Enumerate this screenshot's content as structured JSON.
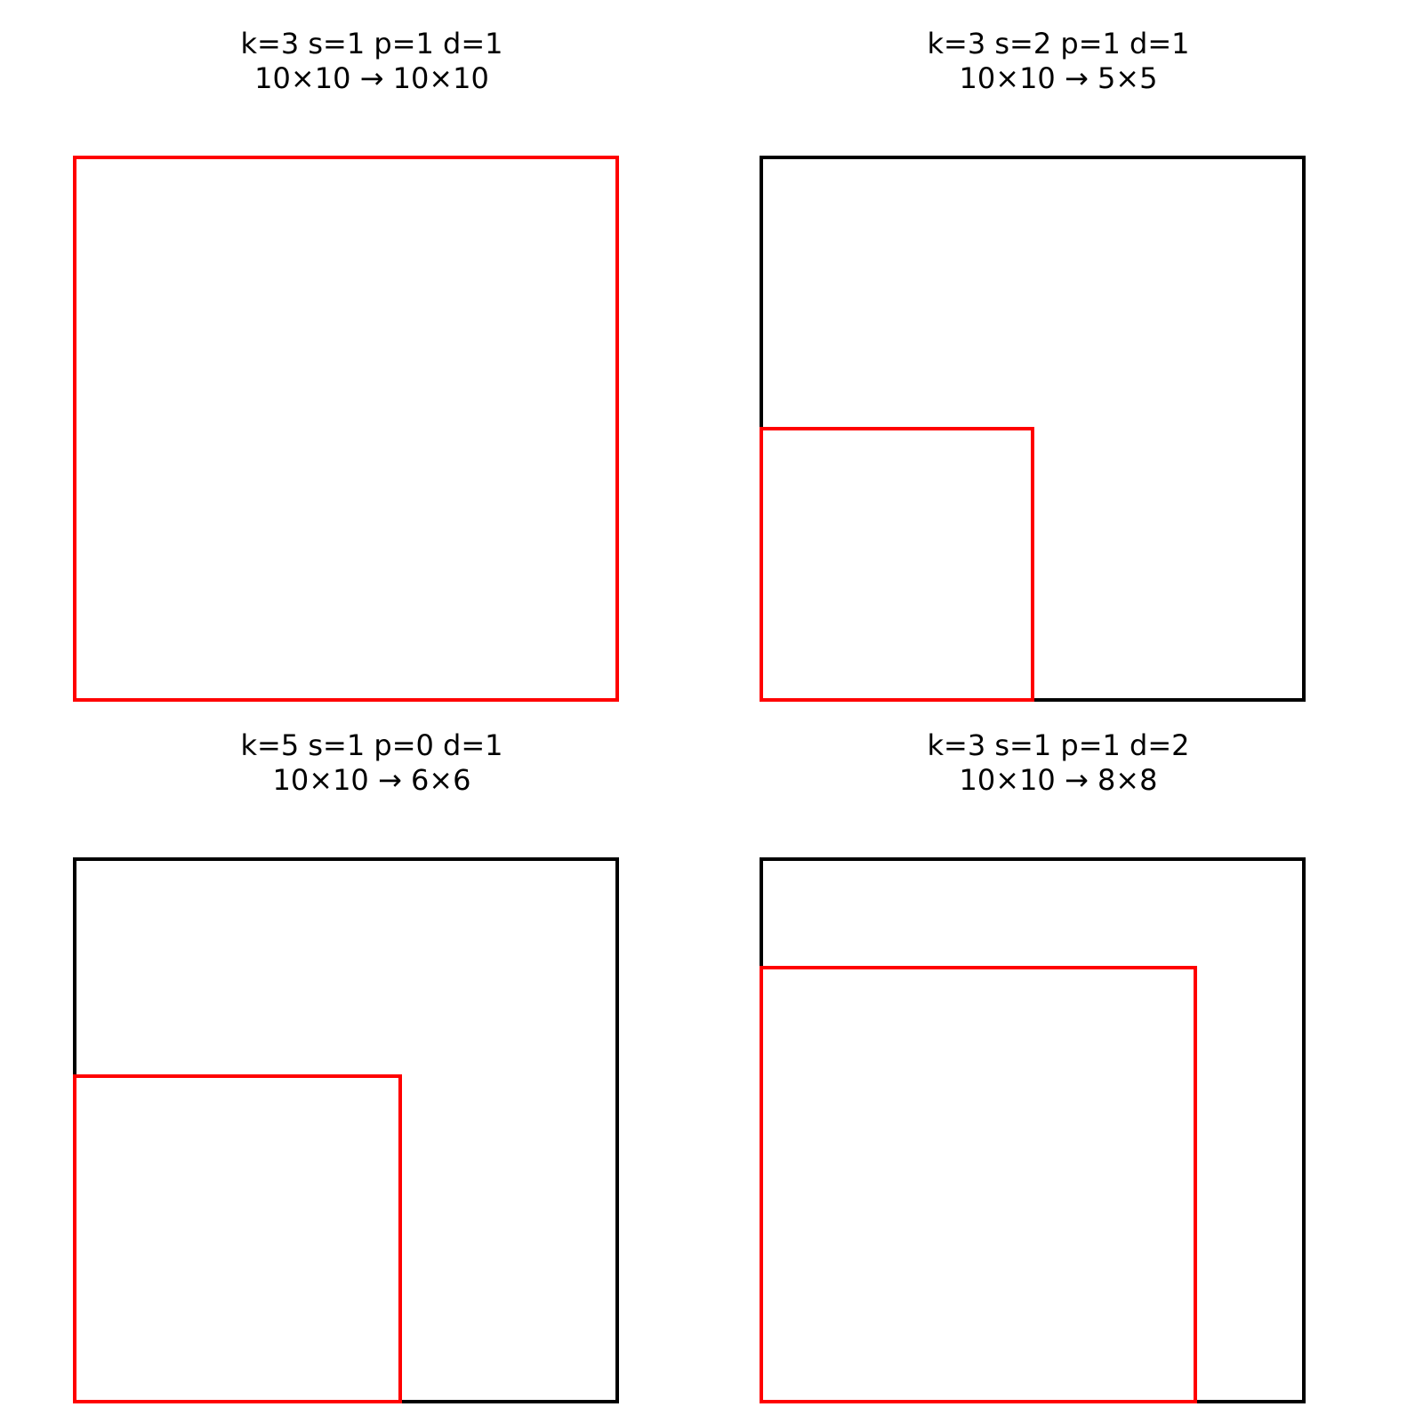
{
  "panels": [
    {
      "id": "same-padding",
      "params": "k=3 s=1 p=1 d=1",
      "shape": "10×10 → 10×10",
      "kernel": 3,
      "stride": 1,
      "padding": 1,
      "dilation": 1,
      "input_size": 10,
      "output_size": 10
    },
    {
      "id": "stride-2",
      "params": "k=3 s=2 p=1 d=1",
      "shape": "10×10 → 5×5",
      "kernel": 3,
      "stride": 2,
      "padding": 1,
      "dilation": 1,
      "input_size": 10,
      "output_size": 5
    },
    {
      "id": "no-padding",
      "params": "k=5 s=1 p=0 d=1",
      "shape": "10×10 → 6×6",
      "kernel": 5,
      "stride": 1,
      "padding": 0,
      "dilation": 1,
      "input_size": 10,
      "output_size": 6
    },
    {
      "id": "dilation-2",
      "params": "k=3 s=1 p=1 d=2",
      "shape": "10×10 → 8×8",
      "kernel": 3,
      "stride": 1,
      "padding": 1,
      "dilation": 2,
      "input_size": 10,
      "output_size": 8
    }
  ],
  "colors": {
    "input_outline": "#000000",
    "output_outline": "#ff0000",
    "background": "#ffffff",
    "text": "#000000"
  }
}
